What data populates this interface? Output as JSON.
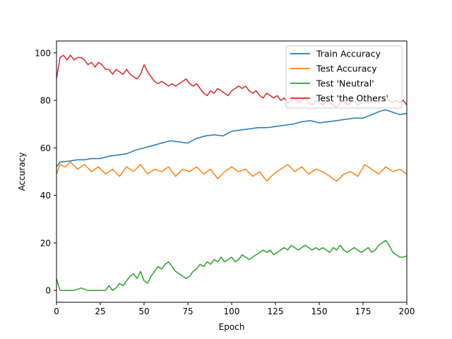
{
  "chart_data": {
    "type": "line",
    "title": "",
    "xlabel": "Epoch",
    "ylabel": "Accuracy",
    "xlim": [
      0,
      200
    ],
    "ylim": [
      -5,
      105
    ],
    "xticks": [
      0,
      25,
      50,
      75,
      100,
      125,
      150,
      175,
      200
    ],
    "yticks": [
      0,
      20,
      40,
      60,
      80,
      100
    ],
    "grid": false,
    "legend_position": "top-right",
    "series": [
      {
        "name": "Train Accuracy",
        "color": "#1f77b4",
        "points": [
          [
            0,
            52
          ],
          [
            2,
            54
          ],
          [
            8,
            54.5
          ],
          [
            12,
            55
          ],
          [
            16,
            55
          ],
          [
            20,
            55.5
          ],
          [
            25,
            55.5
          ],
          [
            30,
            56.5
          ],
          [
            35,
            57
          ],
          [
            40,
            57.5
          ],
          [
            45,
            59
          ],
          [
            50,
            60
          ],
          [
            55,
            61
          ],
          [
            60,
            62
          ],
          [
            65,
            63
          ],
          [
            70,
            62.5
          ],
          [
            75,
            62
          ],
          [
            80,
            64
          ],
          [
            85,
            65
          ],
          [
            90,
            65.5
          ],
          [
            95,
            65
          ],
          [
            100,
            67
          ],
          [
            105,
            67.5
          ],
          [
            110,
            68
          ],
          [
            115,
            68.5
          ],
          [
            120,
            68.5
          ],
          [
            125,
            69
          ],
          [
            130,
            69.5
          ],
          [
            135,
            70
          ],
          [
            140,
            71
          ],
          [
            145,
            71.5
          ],
          [
            150,
            70.5
          ],
          [
            155,
            71
          ],
          [
            160,
            71.5
          ],
          [
            165,
            72
          ],
          [
            170,
            72.5
          ],
          [
            175,
            72.5
          ],
          [
            180,
            74
          ],
          [
            185,
            75.5
          ],
          [
            188,
            76
          ],
          [
            192,
            75
          ],
          [
            196,
            74
          ],
          [
            200,
            74.5
          ]
        ]
      },
      {
        "name": "Test Accuracy",
        "color": "#ff7f0e",
        "points": [
          [
            0,
            49
          ],
          [
            2,
            53
          ],
          [
            5,
            52
          ],
          [
            8,
            54
          ],
          [
            12,
            51
          ],
          [
            16,
            53
          ],
          [
            20,
            50
          ],
          [
            24,
            52
          ],
          [
            28,
            49
          ],
          [
            32,
            51
          ],
          [
            36,
            48
          ],
          [
            40,
            52
          ],
          [
            44,
            50
          ],
          [
            48,
            53
          ],
          [
            52,
            49
          ],
          [
            56,
            51
          ],
          [
            60,
            50
          ],
          [
            64,
            52
          ],
          [
            68,
            48
          ],
          [
            72,
            51
          ],
          [
            76,
            50
          ],
          [
            80,
            52
          ],
          [
            84,
            49
          ],
          [
            88,
            51
          ],
          [
            92,
            47
          ],
          [
            96,
            50
          ],
          [
            100,
            52
          ],
          [
            104,
            50
          ],
          [
            108,
            51
          ],
          [
            112,
            48
          ],
          [
            116,
            50
          ],
          [
            120,
            46
          ],
          [
            124,
            49
          ],
          [
            128,
            51
          ],
          [
            132,
            53
          ],
          [
            136,
            50
          ],
          [
            140,
            52
          ],
          [
            144,
            49
          ],
          [
            148,
            51
          ],
          [
            152,
            50
          ],
          [
            156,
            48
          ],
          [
            160,
            46
          ],
          [
            164,
            49
          ],
          [
            168,
            50
          ],
          [
            172,
            48
          ],
          [
            176,
            53
          ],
          [
            180,
            51
          ],
          [
            184,
            49
          ],
          [
            188,
            52
          ],
          [
            192,
            50
          ],
          [
            196,
            51
          ],
          [
            200,
            49
          ]
        ]
      },
      {
        "name": "Test 'Neutral'",
        "color": "#2ca02c",
        "points": [
          [
            0,
            5
          ],
          [
            2,
            0
          ],
          [
            6,
            0
          ],
          [
            10,
            0
          ],
          [
            14,
            1
          ],
          [
            18,
            0
          ],
          [
            22,
            0
          ],
          [
            26,
            0
          ],
          [
            28,
            0
          ],
          [
            30,
            2
          ],
          [
            32,
            0
          ],
          [
            34,
            1
          ],
          [
            36,
            3
          ],
          [
            38,
            2
          ],
          [
            40,
            4
          ],
          [
            42,
            6
          ],
          [
            44,
            7
          ],
          [
            46,
            5
          ],
          [
            48,
            8
          ],
          [
            50,
            4
          ],
          [
            52,
            3
          ],
          [
            54,
            6
          ],
          [
            56,
            8
          ],
          [
            58,
            10
          ],
          [
            60,
            9
          ],
          [
            62,
            11
          ],
          [
            64,
            12
          ],
          [
            66,
            10
          ],
          [
            68,
            8
          ],
          [
            70,
            7
          ],
          [
            72,
            6
          ],
          [
            74,
            5
          ],
          [
            76,
            6
          ],
          [
            78,
            8
          ],
          [
            80,
            9
          ],
          [
            82,
            11
          ],
          [
            84,
            10
          ],
          [
            86,
            12
          ],
          [
            88,
            11
          ],
          [
            90,
            13
          ],
          [
            92,
            12
          ],
          [
            94,
            14
          ],
          [
            96,
            12
          ],
          [
            98,
            13
          ],
          [
            100,
            14
          ],
          [
            102,
            12
          ],
          [
            104,
            13
          ],
          [
            106,
            15
          ],
          [
            108,
            14
          ],
          [
            110,
            13
          ],
          [
            112,
            14
          ],
          [
            114,
            15
          ],
          [
            116,
            16
          ],
          [
            118,
            17
          ],
          [
            120,
            16
          ],
          [
            122,
            17
          ],
          [
            124,
            15
          ],
          [
            126,
            16
          ],
          [
            128,
            17
          ],
          [
            130,
            18
          ],
          [
            132,
            17
          ],
          [
            134,
            19
          ],
          [
            136,
            18
          ],
          [
            138,
            17
          ],
          [
            140,
            18
          ],
          [
            142,
            19
          ],
          [
            144,
            18
          ],
          [
            146,
            17
          ],
          [
            148,
            18
          ],
          [
            150,
            17
          ],
          [
            152,
            18
          ],
          [
            154,
            17
          ],
          [
            156,
            16
          ],
          [
            158,
            18
          ],
          [
            160,
            17
          ],
          [
            162,
            19
          ],
          [
            164,
            17
          ],
          [
            166,
            16
          ],
          [
            168,
            17
          ],
          [
            170,
            18
          ],
          [
            172,
            17
          ],
          [
            174,
            16
          ],
          [
            176,
            17
          ],
          [
            178,
            18
          ],
          [
            180,
            16
          ],
          [
            182,
            17
          ],
          [
            184,
            19
          ],
          [
            186,
            20
          ],
          [
            188,
            21
          ],
          [
            190,
            19
          ],
          [
            192,
            16
          ],
          [
            194,
            15
          ],
          [
            196,
            14
          ],
          [
            198,
            14
          ],
          [
            200,
            14.5
          ]
        ]
      },
      {
        "name": "Test 'the Others'",
        "color": "#d62728",
        "points": [
          [
            0,
            89
          ],
          [
            2,
            98
          ],
          [
            4,
            99
          ],
          [
            6,
            97
          ],
          [
            8,
            99
          ],
          [
            10,
            97
          ],
          [
            12,
            98
          ],
          [
            14,
            98
          ],
          [
            16,
            97
          ],
          [
            18,
            95
          ],
          [
            20,
            96
          ],
          [
            22,
            94
          ],
          [
            24,
            96
          ],
          [
            26,
            95
          ],
          [
            28,
            93
          ],
          [
            30,
            93
          ],
          [
            32,
            91
          ],
          [
            34,
            93
          ],
          [
            36,
            92
          ],
          [
            38,
            91
          ],
          [
            40,
            93
          ],
          [
            42,
            91
          ],
          [
            44,
            90
          ],
          [
            46,
            89
          ],
          [
            48,
            91
          ],
          [
            50,
            95
          ],
          [
            52,
            92
          ],
          [
            54,
            90
          ],
          [
            56,
            88
          ],
          [
            58,
            87
          ],
          [
            60,
            88
          ],
          [
            62,
            87
          ],
          [
            64,
            86
          ],
          [
            66,
            87
          ],
          [
            68,
            86
          ],
          [
            70,
            87
          ],
          [
            72,
            88
          ],
          [
            74,
            89
          ],
          [
            76,
            87
          ],
          [
            78,
            86
          ],
          [
            80,
            87
          ],
          [
            82,
            85
          ],
          [
            84,
            83
          ],
          [
            86,
            82
          ],
          [
            88,
            84
          ],
          [
            90,
            83
          ],
          [
            92,
            85
          ],
          [
            94,
            84
          ],
          [
            96,
            83
          ],
          [
            98,
            82
          ],
          [
            100,
            84
          ],
          [
            102,
            85
          ],
          [
            104,
            86
          ],
          [
            106,
            85
          ],
          [
            108,
            86
          ],
          [
            110,
            84
          ],
          [
            112,
            83
          ],
          [
            114,
            84
          ],
          [
            116,
            82
          ],
          [
            118,
            81
          ],
          [
            120,
            83
          ],
          [
            122,
            82
          ],
          [
            124,
            81
          ],
          [
            126,
            82
          ],
          [
            128,
            80
          ],
          [
            130,
            81
          ],
          [
            132,
            79
          ],
          [
            134,
            80
          ],
          [
            136,
            81
          ],
          [
            138,
            79
          ],
          [
            140,
            80
          ],
          [
            142,
            81
          ],
          [
            144,
            79
          ],
          [
            146,
            78
          ],
          [
            148,
            80
          ],
          [
            150,
            79
          ],
          [
            152,
            78
          ],
          [
            154,
            80
          ],
          [
            156,
            79
          ],
          [
            158,
            78
          ],
          [
            160,
            77
          ],
          [
            162,
            79
          ],
          [
            164,
            80
          ],
          [
            166,
            78
          ],
          [
            168,
            79
          ],
          [
            170,
            80
          ],
          [
            172,
            78
          ],
          [
            174,
            79
          ],
          [
            176,
            80
          ],
          [
            178,
            79
          ],
          [
            180,
            81
          ],
          [
            182,
            80
          ],
          [
            184,
            79
          ],
          [
            186,
            80
          ],
          [
            188,
            81
          ],
          [
            190,
            80
          ],
          [
            192,
            79
          ],
          [
            194,
            80
          ],
          [
            196,
            79
          ],
          [
            198,
            80
          ],
          [
            200,
            78
          ]
        ]
      }
    ]
  }
}
